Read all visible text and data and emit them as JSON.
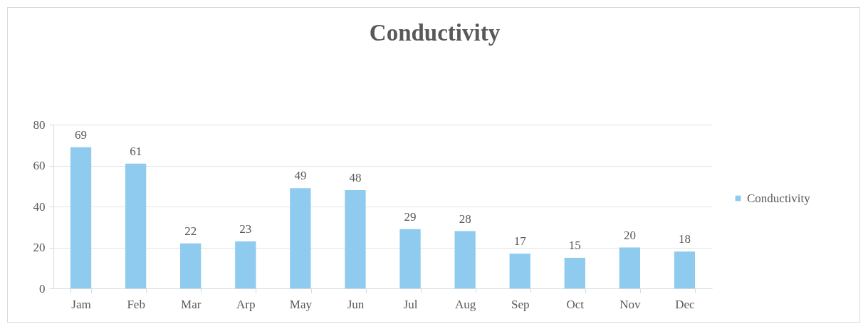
{
  "chart_data": {
    "type": "bar",
    "title": "Conductivity",
    "categories": [
      "Jam",
      "Feb",
      "Mar",
      "Arp",
      "May",
      "Jun",
      "Jul",
      "Aug",
      "Sep",
      "Oct",
      "Nov",
      "Dec"
    ],
    "series": [
      {
        "name": "Conductivity",
        "color": "#8ecbef",
        "values": [
          69,
          61,
          22,
          23,
          49,
          48,
          29,
          28,
          17,
          15,
          20,
          18
        ]
      }
    ],
    "ylim": [
      0,
      80
    ],
    "yticks": [
      0,
      20,
      40,
      60,
      80
    ],
    "grid": "y",
    "legend": "right",
    "data_labels": true
  }
}
